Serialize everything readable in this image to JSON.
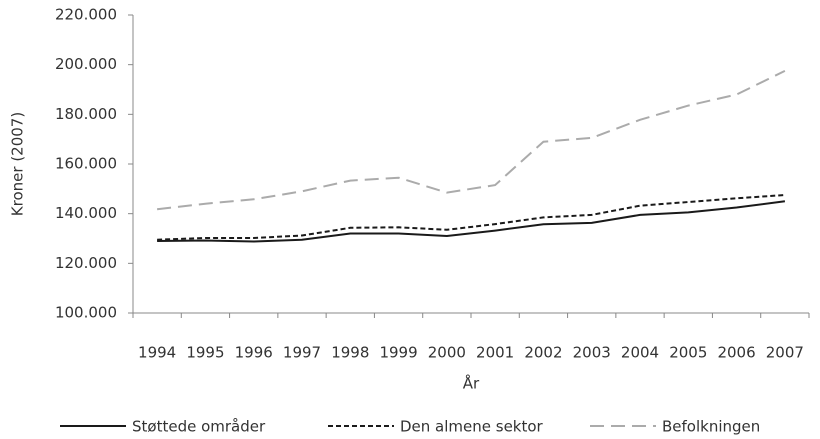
{
  "chart_data": {
    "type": "line",
    "y_label": "Kroner (2007)",
    "x_label": "År",
    "categories": [
      "1994",
      "1995",
      "1996",
      "1997",
      "1998",
      "1999",
      "2000",
      "2001",
      "2002",
      "2003",
      "2004",
      "2005",
      "2006",
      "2007"
    ],
    "series": [
      {
        "name": "Støttede områder",
        "color": "#1a1a1a",
        "dash": "solid",
        "values": [
          129000,
          129200,
          128800,
          129500,
          132000,
          132000,
          131000,
          133200,
          135700,
          136300,
          139500,
          140500,
          142500,
          145000
        ]
      },
      {
        "name": "Den almene sektor",
        "color": "#1a1a1a",
        "dash": "short",
        "values": [
          129500,
          130200,
          130200,
          131200,
          134300,
          134500,
          133500,
          135800,
          138500,
          139500,
          143200,
          144700,
          146200,
          147500
        ]
      },
      {
        "name": "Befolkningen",
        "color": "#ababab",
        "dash": "long",
        "values": [
          141800,
          144000,
          145800,
          149000,
          153300,
          154500,
          148500,
          151500,
          169000,
          170500,
          177800,
          183500,
          188000,
          197500
        ]
      }
    ],
    "ylim": [
      100000,
      220000
    ],
    "yticks": [
      {
        "value": 100000,
        "label": "100.000"
      },
      {
        "value": 120000,
        "label": "120.000"
      },
      {
        "value": 140000,
        "label": "140.000"
      },
      {
        "value": 160000,
        "label": "160.000"
      },
      {
        "value": 180000,
        "label": "180.000"
      },
      {
        "value": 200000,
        "label": "200.000"
      },
      {
        "value": 220000,
        "label": "220.000"
      }
    ],
    "legend": "bottom"
  }
}
